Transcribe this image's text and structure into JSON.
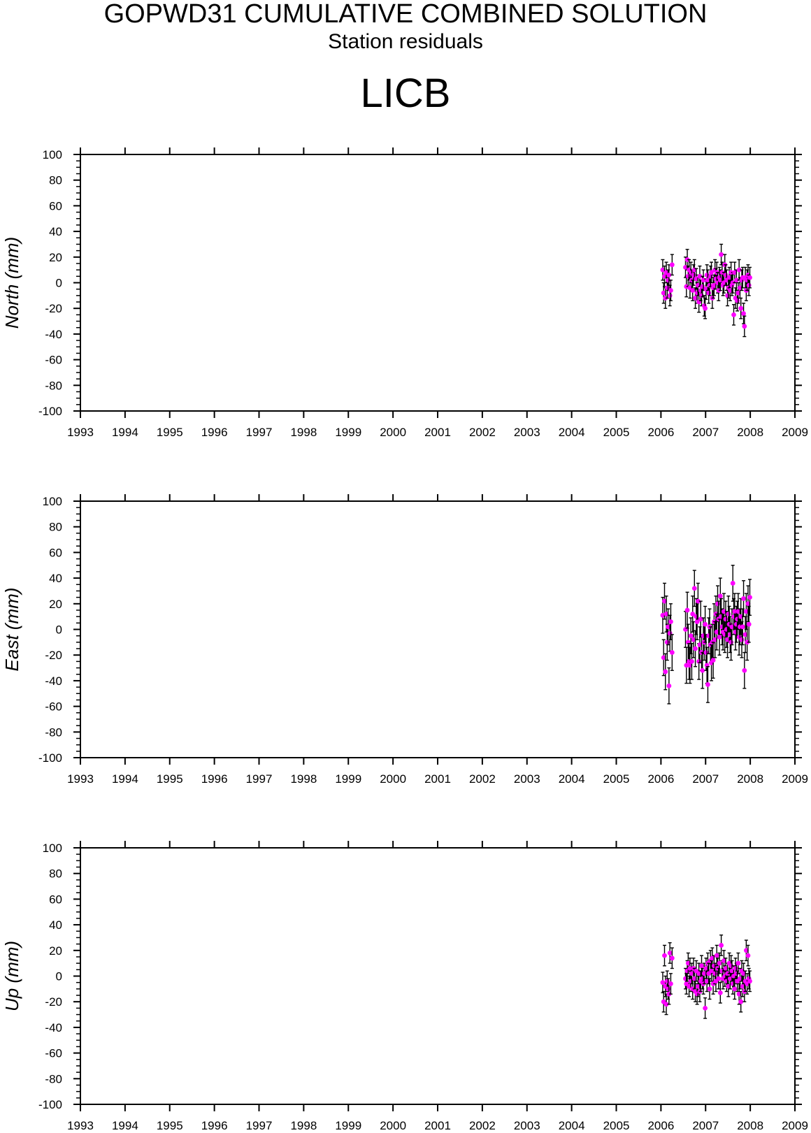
{
  "header": {
    "title": "GOPWD31 CUMULATIVE COMBINED SOLUTION",
    "subtitle": "Station residuals",
    "station": "LICB"
  },
  "colors": {
    "marker": "#ff00ff",
    "errorbar": "#000000",
    "axis": "#000000"
  },
  "chart_data": [
    {
      "type": "scatter",
      "ylabel": "North (mm)",
      "xlim": [
        1993,
        2009
      ],
      "ylim": [
        -100,
        100
      ],
      "x_ticks": [
        "1993",
        "1994",
        "1995",
        "1996",
        "1997",
        "1998",
        "1999",
        "2000",
        "2001",
        "2002",
        "2003",
        "2004",
        "2005",
        "2006",
        "2007",
        "2008",
        "2009"
      ],
      "y_ticks": [
        "100",
        "80",
        "60",
        "40",
        "20",
        "0",
        "-20",
        "-40",
        "-60",
        "-80",
        "-100"
      ],
      "error_bar": 8,
      "series": [
        {
          "x": [
            2006.04,
            2006.06,
            2006.08,
            2006.1,
            2006.12,
            2006.14,
            2006.16,
            2006.18,
            2006.2,
            2006.22,
            2006.25,
            2006.55,
            2006.57,
            2006.59,
            2006.61,
            2006.63,
            2006.65,
            2006.67,
            2006.69,
            2006.71,
            2006.73,
            2006.75,
            2006.77,
            2006.79,
            2006.81,
            2006.83,
            2006.85,
            2006.87,
            2006.89,
            2006.91,
            2006.93,
            2006.95,
            2006.97,
            2006.99,
            2007.01,
            2007.03,
            2007.05,
            2007.07,
            2007.09,
            2007.11,
            2007.13,
            2007.15,
            2007.17,
            2007.19,
            2007.21,
            2007.23,
            2007.25,
            2007.27,
            2007.29,
            2007.31,
            2007.33,
            2007.35,
            2007.37,
            2007.39,
            2007.41,
            2007.43,
            2007.45,
            2007.47,
            2007.49,
            2007.51,
            2007.53,
            2007.55,
            2007.57,
            2007.59,
            2007.61,
            2007.63,
            2007.65,
            2007.67,
            2007.69,
            2007.71,
            2007.73,
            2007.75,
            2007.77,
            2007.79,
            2007.81,
            2007.83,
            2007.85,
            2007.87,
            2007.89,
            2007.91,
            2007.93,
            2007.95,
            2007.97,
            2007.99
          ],
          "y": [
            10,
            -8,
            5,
            -12,
            8,
            -4,
            2,
            6,
            -10,
            -6,
            14,
            12,
            -3,
            18,
            5,
            10,
            -4,
            8,
            2,
            -6,
            6,
            10,
            -12,
            3,
            -8,
            -2,
            -15,
            5,
            -6,
            -10,
            -3,
            2,
            -18,
            -20,
            -5,
            6,
            2,
            -8,
            -2,
            5,
            8,
            -12,
            -4,
            -2,
            10,
            3,
            8,
            0,
            -6,
            4,
            2,
            22,
            8,
            -2,
            0,
            14,
            6,
            2,
            -10,
            -4,
            4,
            -6,
            8,
            -2,
            0,
            -25,
            8,
            -12,
            2,
            -14,
            -8,
            10,
            -4,
            -20,
            2,
            4,
            -24,
            -34,
            4,
            -6,
            2,
            6,
            -2,
            4
          ]
        }
      ]
    },
    {
      "type": "scatter",
      "ylabel": "East (mm)",
      "xlim": [
        1993,
        2009
      ],
      "ylim": [
        -100,
        100
      ],
      "x_ticks": [
        "1993",
        "1994",
        "1995",
        "1996",
        "1997",
        "1998",
        "1999",
        "2000",
        "2001",
        "2002",
        "2003",
        "2004",
        "2005",
        "2006",
        "2007",
        "2008",
        "2009"
      ],
      "y_ticks": [
        "100",
        "80",
        "60",
        "40",
        "20",
        "0",
        "-20",
        "-40",
        "-60",
        "-80",
        "-100"
      ],
      "error_bar": 14,
      "series": [
        {
          "x": [
            2006.04,
            2006.06,
            2006.08,
            2006.1,
            2006.12,
            2006.14,
            2006.16,
            2006.18,
            2006.2,
            2006.22,
            2006.25,
            2006.55,
            2006.57,
            2006.59,
            2006.61,
            2006.63,
            2006.65,
            2006.67,
            2006.69,
            2006.71,
            2006.73,
            2006.75,
            2006.77,
            2006.79,
            2006.81,
            2006.83,
            2006.85,
            2006.87,
            2006.89,
            2006.91,
            2006.93,
            2006.95,
            2006.97,
            2006.99,
            2007.01,
            2007.03,
            2007.05,
            2007.07,
            2007.09,
            2007.11,
            2007.13,
            2007.15,
            2007.17,
            2007.19,
            2007.21,
            2007.23,
            2007.25,
            2007.27,
            2007.29,
            2007.31,
            2007.33,
            2007.35,
            2007.37,
            2007.39,
            2007.41,
            2007.43,
            2007.45,
            2007.47,
            2007.49,
            2007.51,
            2007.53,
            2007.55,
            2007.57,
            2007.59,
            2007.61,
            2007.63,
            2007.65,
            2007.67,
            2007.69,
            2007.71,
            2007.73,
            2007.75,
            2007.77,
            2007.79,
            2007.81,
            2007.83,
            2007.85,
            2007.87,
            2007.89,
            2007.91,
            2007.93,
            2007.95,
            2007.97,
            2007.99
          ],
          "y": [
            11,
            -22,
            22,
            -33,
            12,
            -10,
            2,
            -44,
            -3,
            6,
            -18,
            0,
            -28,
            15,
            -10,
            -25,
            -28,
            -5,
            -25,
            12,
            -8,
            32,
            -15,
            10,
            6,
            22,
            -25,
            -12,
            8,
            -18,
            -32,
            -5,
            -10,
            4,
            -18,
            -28,
            -43,
            -5,
            2,
            -12,
            -26,
            -10,
            -24,
            6,
            -8,
            12,
            -2,
            20,
            8,
            -6,
            26,
            10,
            2,
            -2,
            14,
            -4,
            8,
            0,
            -8,
            12,
            4,
            -4,
            -10,
            2,
            36,
            10,
            14,
            -2,
            4,
            8,
            14,
            -6,
            2,
            10,
            -8,
            2,
            24,
            -32,
            -4,
            14,
            -10,
            20,
            4,
            25
          ]
        }
      ]
    },
    {
      "type": "scatter",
      "ylabel": "Up (mm)",
      "xlim": [
        1993,
        2009
      ],
      "ylim": [
        -100,
        100
      ],
      "x_ticks": [
        "1993",
        "1994",
        "1995",
        "1996",
        "1997",
        "1998",
        "1999",
        "2000",
        "2001",
        "2002",
        "2003",
        "2004",
        "2005",
        "2006",
        "2007",
        "2008",
        "2009"
      ],
      "y_ticks": [
        "100",
        "80",
        "60",
        "40",
        "20",
        "0",
        "-20",
        "-40",
        "-60",
        "-80",
        "-100"
      ],
      "error_bar": 8,
      "series": [
        {
          "x": [
            2006.04,
            2006.06,
            2006.08,
            2006.1,
            2006.12,
            2006.14,
            2006.16,
            2006.18,
            2006.2,
            2006.22,
            2006.25,
            2006.55,
            2006.57,
            2006.59,
            2006.61,
            2006.63,
            2006.65,
            2006.67,
            2006.69,
            2006.71,
            2006.73,
            2006.75,
            2006.77,
            2006.79,
            2006.81,
            2006.83,
            2006.85,
            2006.87,
            2006.89,
            2006.91,
            2006.93,
            2006.95,
            2006.97,
            2006.99,
            2007.01,
            2007.03,
            2007.05,
            2007.07,
            2007.09,
            2007.11,
            2007.13,
            2007.15,
            2007.17,
            2007.19,
            2007.21,
            2007.23,
            2007.25,
            2007.27,
            2007.29,
            2007.31,
            2007.33,
            2007.35,
            2007.37,
            2007.39,
            2007.41,
            2007.43,
            2007.45,
            2007.47,
            2007.49,
            2007.51,
            2007.53,
            2007.55,
            2007.57,
            2007.59,
            2007.61,
            2007.63,
            2007.65,
            2007.67,
            2007.69,
            2007.71,
            2007.73,
            2007.75,
            2007.77,
            2007.79,
            2007.81,
            2007.83,
            2007.85,
            2007.87,
            2007.89,
            2007.91,
            2007.93,
            2007.95,
            2007.97,
            2007.99
          ],
          "y": [
            -5,
            -20,
            16,
            -8,
            -22,
            -4,
            -10,
            -14,
            18,
            -6,
            14,
            -2,
            -6,
            4,
            10,
            -8,
            6,
            -4,
            2,
            -10,
            6,
            -2,
            -12,
            4,
            -14,
            -8,
            2,
            -12,
            -4,
            8,
            -2,
            -6,
            2,
            -25,
            6,
            -4,
            10,
            2,
            -10,
            12,
            4,
            14,
            -6,
            8,
            2,
            -4,
            16,
            6,
            -2,
            10,
            -13,
            24,
            4,
            -2,
            12,
            0,
            6,
            -4,
            2,
            -8,
            10,
            -2,
            8,
            4,
            -6,
            0,
            -10,
            6,
            2,
            -4,
            10,
            -14,
            -2,
            -20,
            4,
            -8,
            2,
            -12,
            -4,
            20,
            -6,
            16,
            -2,
            -4
          ]
        }
      ]
    }
  ]
}
